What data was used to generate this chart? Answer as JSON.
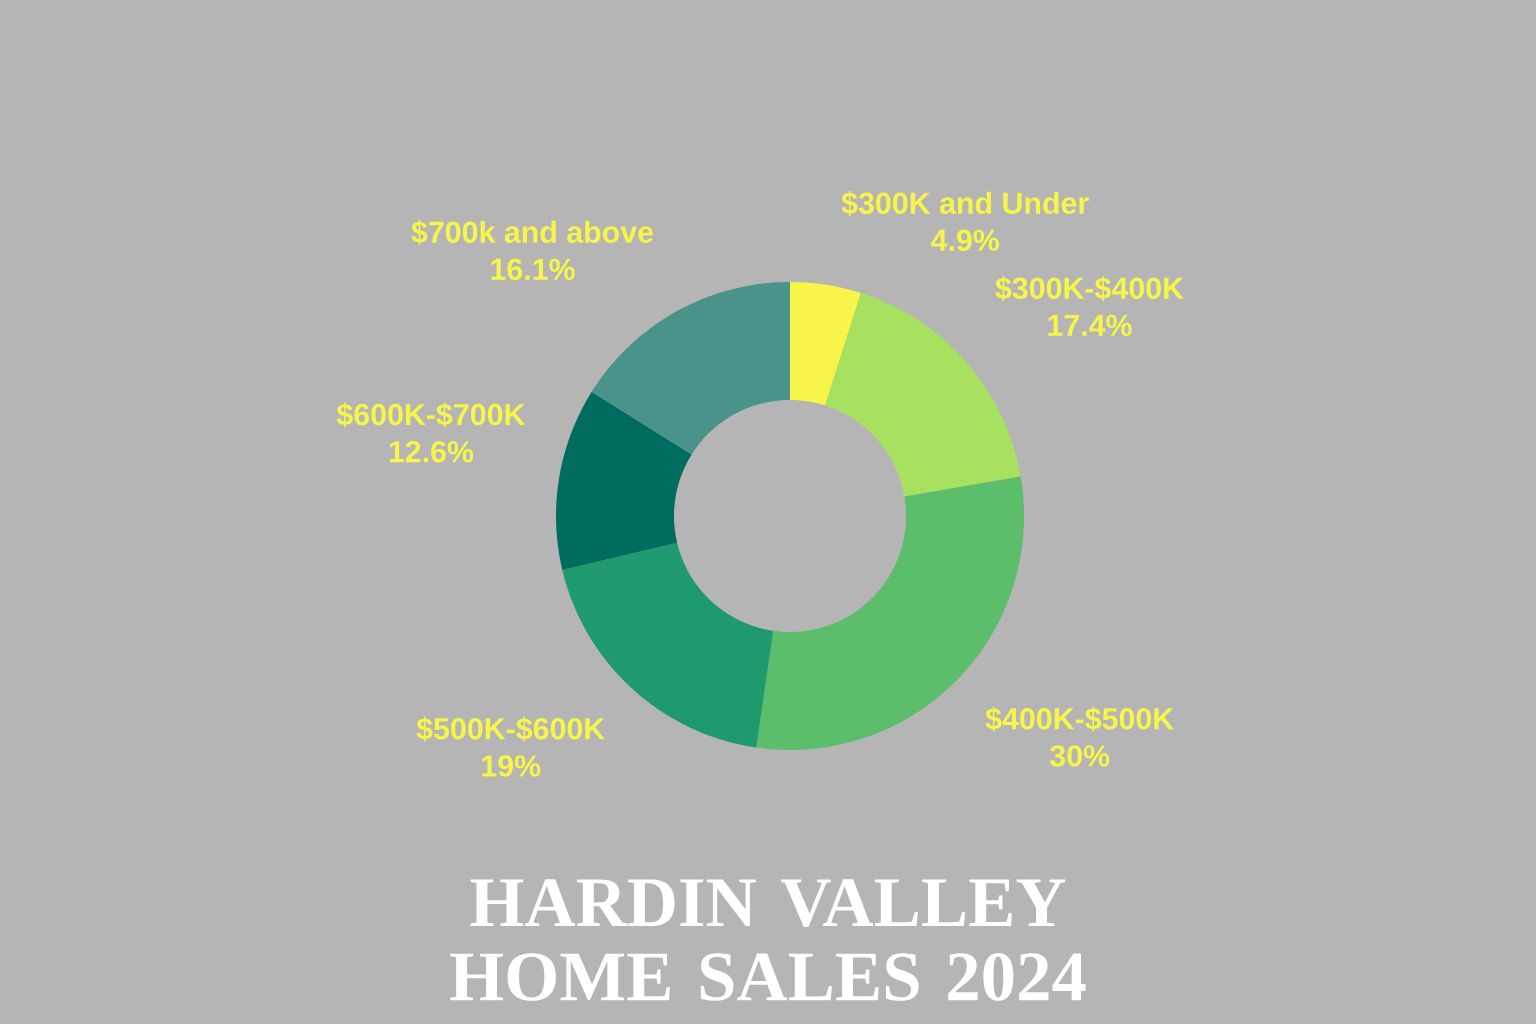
{
  "chart_data": {
    "type": "donut",
    "title": "HARDIN VALLEY HOME SALES 2024",
    "categories": [
      "$300K and Under",
      "$300K-$400K",
      "$400K-$500K",
      "$500K-$600K",
      "$600K-$700K",
      "$700k and above"
    ],
    "values": [
      4.9,
      17.4,
      30,
      19,
      12.6,
      16.1
    ],
    "value_labels": [
      "4.9%",
      "17.4%",
      "30%",
      "19%",
      "12.6%",
      "16.1%"
    ],
    "colors": [
      "#f7f54a",
      "#a8e060",
      "#5cbd6a",
      "#1f9a6e",
      "#006b5f",
      "#4a938a"
    ]
  }
}
